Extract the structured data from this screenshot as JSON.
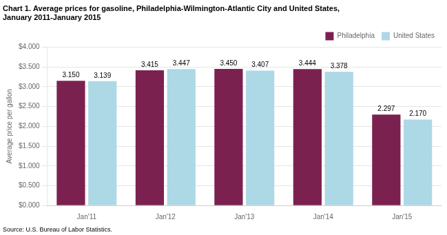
{
  "chart_data": {
    "type": "bar",
    "title": [
      "Chart 1. Average prices for gasoline, Philadelphia-Wilmington-Atlantic City and United States,",
      "January 2011-January 2015"
    ],
    "ylabel": "Average price per gallon",
    "source": "Source: U.S. Bureau of Labor Statistics.",
    "categories": [
      "Jan'11",
      "Jan'12",
      "Jan'13",
      "Jan'14",
      "Jan'15"
    ],
    "series": [
      {
        "name": "Philadelphia",
        "color": "#7B2150",
        "values": [
          3.15,
          3.415,
          3.45,
          3.444,
          2.297
        ],
        "value_labels": [
          "3.150",
          "3.415",
          "3.450",
          "3.444",
          "2.297"
        ]
      },
      {
        "name": "United States",
        "color": "#ADD8E6",
        "values": [
          3.139,
          3.447,
          3.407,
          3.378,
          2.17
        ],
        "value_labels": [
          "3.139",
          "3.447",
          "3.407",
          "3.378",
          "2.170"
        ]
      }
    ],
    "ylim": [
      0,
      4.0
    ],
    "yticks": [
      {
        "value": 0.0,
        "label": "$0.000"
      },
      {
        "value": 0.5,
        "label": "$0.500"
      },
      {
        "value": 1.0,
        "label": "$1.000"
      },
      {
        "value": 1.5,
        "label": "$1.500"
      },
      {
        "value": 2.0,
        "label": "$2.000"
      },
      {
        "value": 2.5,
        "label": "$2.500"
      },
      {
        "value": 3.0,
        "label": "$3.000"
      },
      {
        "value": 3.5,
        "label": "$3.500"
      },
      {
        "value": 4.0,
        "label": "$4.000"
      }
    ],
    "grid": true,
    "legend": "upper right",
    "data_labels": true
  }
}
